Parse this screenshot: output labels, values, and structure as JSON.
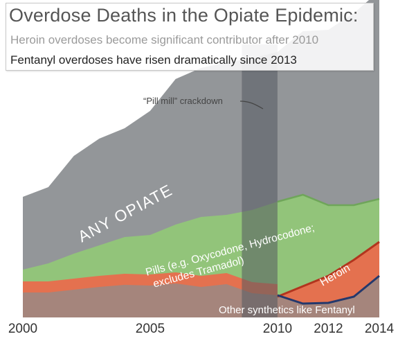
{
  "title": "Overdose Deaths in the Opiate Epidemic:",
  "subtitle1": "Heroin overdoses become significant contributor after 2010",
  "subtitle2": "Fentanyl overdoses have risen dramatically since 2013",
  "annotation": "“Pill mill” crackdown",
  "colors": {
    "any_opiate": "#939699",
    "pills": "#92c47a",
    "pills_line": "#6fa55a",
    "heroin": "#e4714f",
    "heroin_line": "#b2351e",
    "other": "#a5857c",
    "fentanyl_line": "#24386c",
    "crackdown_band": "#545a60"
  },
  "chart_data": {
    "type": "area",
    "x": [
      2000,
      2001,
      2002,
      2003,
      2004,
      2005,
      2006,
      2007,
      2008,
      2009,
      2010,
      2011,
      2012,
      2013,
      2014
    ],
    "xticks": [
      "2000",
      "2005",
      "2010",
      "2012",
      "2014"
    ],
    "xtick_values": [
      2000,
      2005,
      2010,
      2012,
      2014
    ],
    "highlight": {
      "label": "“Pill mill” crackdown",
      "from": 2008.6,
      "to": 2010
    },
    "series": [
      {
        "name": "ANY OPIATE",
        "values": [
          17.4,
          18.8,
          23.3,
          25.8,
          27.3,
          29.8,
          34.4,
          36.0,
          36.8,
          37.4,
          38.3,
          41.3,
          41.5,
          43.9,
          47.1
        ]
      },
      {
        "name": "Pills (e.g. Oxycodone, Hydrocodone; excludes Tramadol)",
        "values": [
          6.9,
          7.8,
          9.2,
          10.4,
          11.6,
          11.9,
          13.4,
          14.5,
          14.8,
          15.5,
          16.7,
          17.7,
          16.2,
          16.2,
          17.1
        ]
      },
      {
        "name": "Heroin",
        "values": [
          null,
          null,
          null,
          null,
          null,
          null,
          null,
          null,
          null,
          null,
          3.0,
          4.5,
          6.0,
          8.3,
          10.9
        ]
      },
      {
        "name": "Other synthetics like Fentanyl",
        "values": [
          3.6,
          3.6,
          4.0,
          4.4,
          4.7,
          4.6,
          4.9,
          4.4,
          4.8,
          3.5,
          3.2,
          2.0,
          2.1,
          3.0,
          6.0
        ]
      }
    ]
  }
}
